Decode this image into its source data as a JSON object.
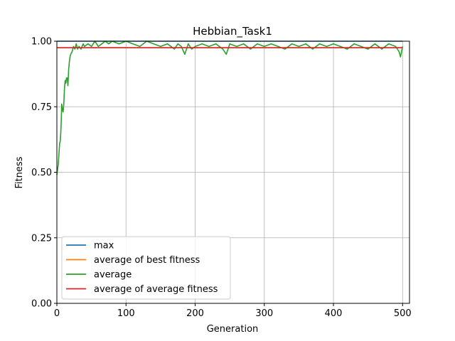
{
  "chart_data": {
    "type": "line",
    "title": "Hebbian_Task1",
    "xlabel": "Generation",
    "ylabel": "Fitness",
    "xlim": [
      0,
      510
    ],
    "ylim": [
      0,
      1.0
    ],
    "xticks": [
      0,
      100,
      200,
      300,
      400,
      500
    ],
    "yticks": [
      0.0,
      0.25,
      0.5,
      0.75,
      1.0
    ],
    "xtick_labels": [
      "0",
      "100",
      "200",
      "300",
      "400",
      "500"
    ],
    "ytick_labels": [
      "0.00",
      "0.25",
      "0.50",
      "0.75",
      "1.00"
    ],
    "grid": true,
    "legend_position": "lower-left",
    "series": [
      {
        "name": "max",
        "color": "#1f77b4",
        "x": [
          0,
          500
        ],
        "y": [
          1.0,
          1.0
        ]
      },
      {
        "name": "average of best fitness",
        "color": "#ff7f0e",
        "x": [
          0,
          500
        ],
        "y": [
          0.975,
          0.975
        ]
      },
      {
        "name": "average",
        "color": "#2ca02c",
        "x": [
          0,
          2,
          4,
          5,
          6,
          7,
          8,
          9,
          10,
          11,
          12,
          13,
          14,
          15,
          16,
          17,
          18,
          19,
          20,
          22,
          24,
          26,
          28,
          30,
          32,
          35,
          38,
          40,
          45,
          50,
          55,
          60,
          65,
          70,
          75,
          80,
          90,
          100,
          110,
          120,
          130,
          140,
          150,
          160,
          170,
          175,
          180,
          185,
          190,
          195,
          200,
          210,
          220,
          230,
          240,
          245,
          250,
          260,
          270,
          280,
          290,
          300,
          310,
          320,
          330,
          340,
          350,
          360,
          370,
          380,
          390,
          400,
          410,
          420,
          430,
          440,
          450,
          460,
          470,
          480,
          490,
          495,
          497,
          500
        ],
        "y": [
          0.49,
          0.53,
          0.61,
          0.62,
          0.67,
          0.76,
          0.74,
          0.73,
          0.76,
          0.82,
          0.85,
          0.84,
          0.86,
          0.86,
          0.83,
          0.89,
          0.92,
          0.94,
          0.95,
          0.96,
          0.98,
          0.97,
          0.99,
          0.97,
          0.98,
          0.97,
          0.99,
          0.98,
          0.99,
          0.98,
          1.0,
          0.98,
          0.99,
          1.0,
          0.99,
          1.0,
          0.99,
          1.0,
          0.99,
          0.98,
          1.0,
          0.99,
          0.98,
          0.99,
          0.97,
          0.99,
          0.98,
          0.95,
          0.99,
          0.97,
          0.98,
          0.99,
          0.98,
          0.99,
          0.97,
          0.95,
          0.99,
          0.98,
          0.99,
          0.97,
          0.99,
          0.98,
          0.99,
          0.98,
          0.97,
          0.99,
          0.98,
          0.99,
          0.97,
          0.99,
          0.98,
          0.99,
          0.98,
          0.97,
          0.99,
          0.98,
          0.97,
          0.99,
          0.97,
          0.99,
          0.98,
          0.96,
          0.94,
          0.98
        ]
      },
      {
        "name": "average of average fitness",
        "color": "#d62728",
        "x": [
          0,
          500
        ],
        "y": [
          0.975,
          0.975
        ]
      }
    ]
  }
}
